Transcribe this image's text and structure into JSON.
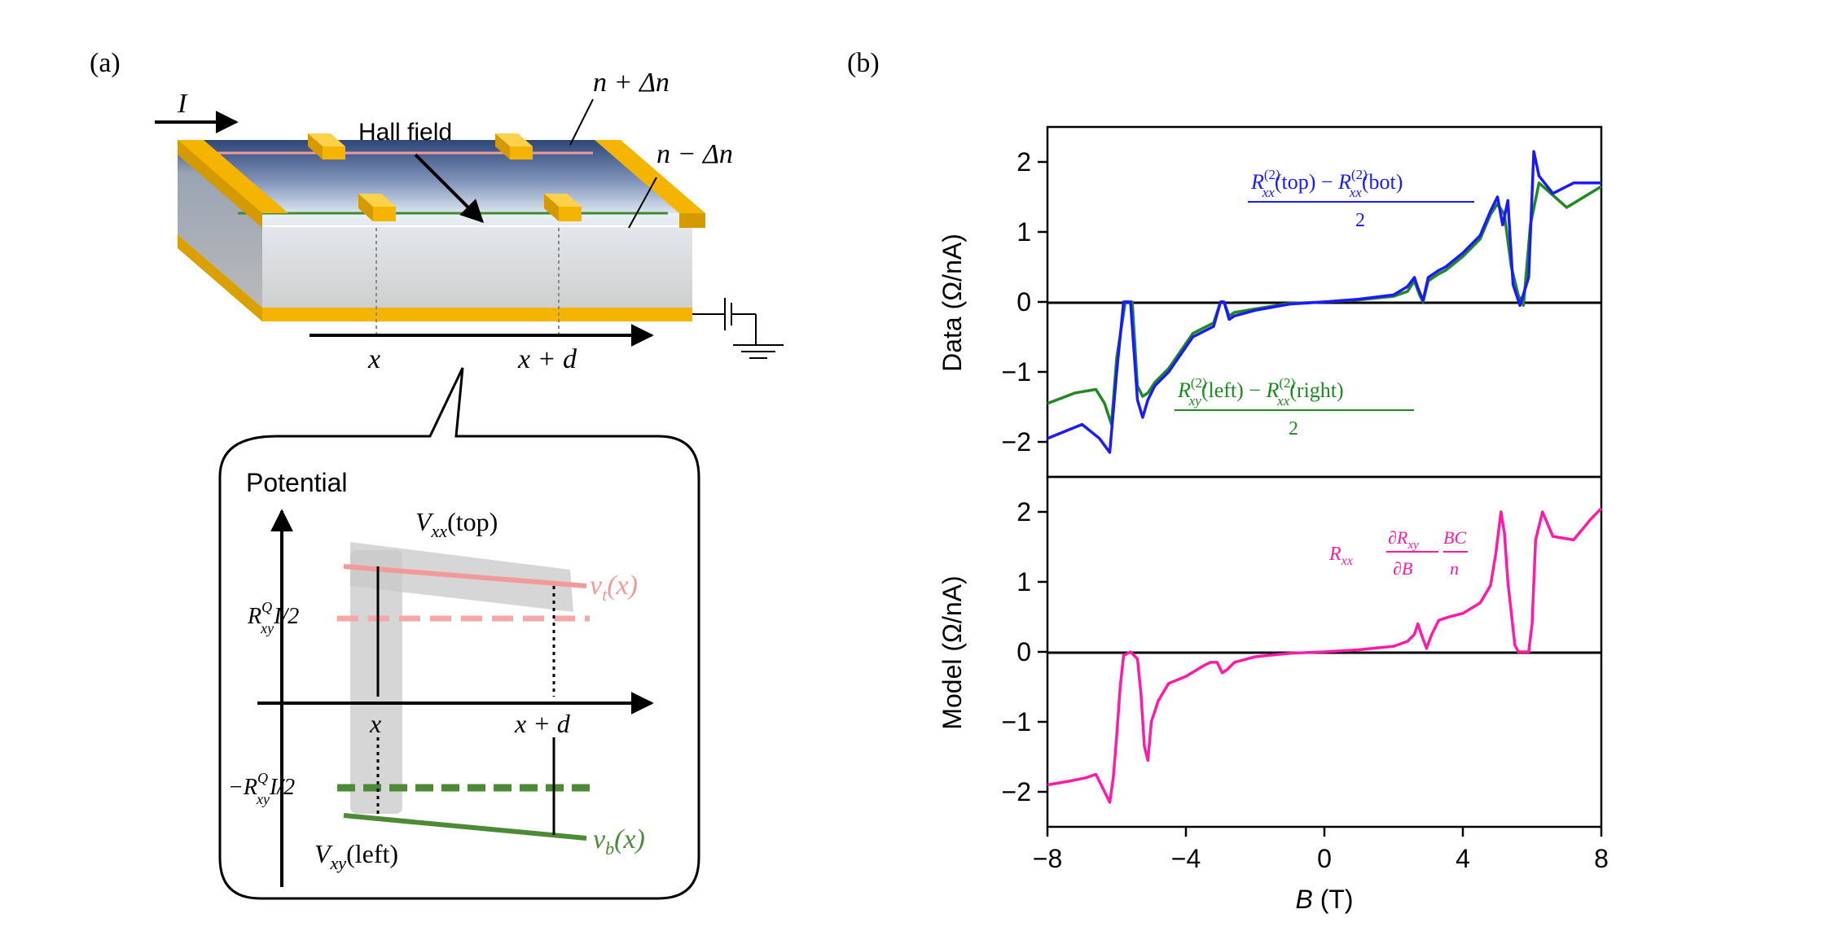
{
  "panel_a": {
    "label": "(a)",
    "current_label": "I",
    "hall_field_label": "Hall field",
    "top_density_label": "n + Δn",
    "bottom_density_label": "n − Δn",
    "position_x_label": "x",
    "position_xd_label": "x + d",
    "inset": {
      "y_axis_label": "Potential",
      "vxx_label": "V",
      "vxx_sub": "xx",
      "vxx_arg": "(top)",
      "vxy_label": "V",
      "vxy_sub": "xy",
      "vxy_arg": "(left)",
      "vt_label": "v",
      "vt_sub": "t",
      "vt_arg": "(x)",
      "vb_label": "v",
      "vb_sub": "b",
      "vb_arg": "(x)",
      "rq_pos_prefix": "R",
      "rq_pos_sup": "Q",
      "rq_pos_sub": "xy",
      "rq_pos_suffix": "I/2",
      "rq_neg_prefix": "−R",
      "rq_neg_sup": "Q",
      "rq_neg_sub": "xy",
      "rq_neg_suffix": "I/2",
      "x_label": "x",
      "xd_label": "x + d"
    },
    "colors": {
      "gold": "#f5b400",
      "vt": "#f29999",
      "vb": "#4d8a36",
      "shade": "#c8c8c8"
    }
  },
  "panel_b": {
    "label": "(b)",
    "top_annotation_blue": {
      "num_a": "R",
      "num_a_sup": "(2)",
      "num_a_sub": "xx",
      "num_a_arg": "(top) − ",
      "num_b": "R",
      "num_b_sup": "(2)",
      "num_b_sub": "xx",
      "num_b_arg": "(bot)",
      "den": "2"
    },
    "top_annotation_green": {
      "num_a": "R",
      "num_a_sup": "(2)",
      "num_a_sub": "xy",
      "num_a_arg": "(left) − ",
      "num_b": "R",
      "num_b_sup": "(2)",
      "num_b_sub": "xx",
      "num_b_arg": "(right)",
      "den": "2"
    },
    "bottom_annotation": {
      "r": "R",
      "r_sub": "xx",
      "frac1_num": "∂R",
      "frac1_num_sub": "xy",
      "frac1_den": "∂B",
      "frac2_num": "BC",
      "frac2_den": "n"
    },
    "colors": {
      "blue": "#1a1aff",
      "green": "#1f8a1f",
      "magenta": "#ff1aa8"
    }
  },
  "chart_data": [
    {
      "type": "line",
      "title": "",
      "ylabel": "Data (Ω/nA)",
      "xlabel": "",
      "xlim": [
        -8,
        8
      ],
      "ylim": [
        -2.5,
        2.5
      ],
      "yticks": [
        "−2",
        "−1",
        "0",
        "1",
        "2"
      ],
      "series": [
        {
          "name": "blue",
          "x": [
            -8,
            -7,
            -6.5,
            -6.2,
            -6.0,
            -5.8,
            -5.6,
            -5.4,
            -5.25,
            -5.1,
            -4.9,
            -4.5,
            -3.8,
            -3.2,
            -3.0,
            -2.9,
            -2.75,
            -2.6,
            -2.0,
            -1.0,
            0,
            1.0,
            2.0,
            2.4,
            2.6,
            2.7,
            2.85,
            3.0,
            3.3,
            3.5,
            4.0,
            4.5,
            4.8,
            5.0,
            5.15,
            5.3,
            5.45,
            5.65,
            5.9,
            6.05,
            6.2,
            6.6,
            7.2,
            8.0
          ],
          "y": [
            -1.95,
            -1.75,
            -1.95,
            -2.15,
            -1.0,
            0.0,
            0.0,
            -1.4,
            -1.65,
            -1.4,
            -1.2,
            -1.0,
            -0.5,
            -0.35,
            0.0,
            0.0,
            -0.25,
            -0.2,
            -0.12,
            -0.03,
            0.0,
            0.04,
            0.1,
            0.22,
            0.35,
            0.2,
            0.02,
            0.35,
            0.45,
            0.5,
            0.7,
            0.95,
            1.3,
            1.5,
            1.1,
            1.45,
            0.25,
            -0.05,
            0.35,
            2.15,
            1.8,
            1.55,
            1.7,
            1.7
          ]
        },
        {
          "name": "green",
          "x": [
            -8,
            -7.2,
            -6.6,
            -6.35,
            -6.15,
            -6.0,
            -5.75,
            -5.55,
            -5.4,
            -5.25,
            -5.1,
            -4.9,
            -4.5,
            -3.8,
            -3.2,
            -3.0,
            -2.9,
            -2.75,
            -2.6,
            -2.0,
            -1.0,
            0,
            1.0,
            2.0,
            2.4,
            2.6,
            2.75,
            2.85,
            3.0,
            3.3,
            3.5,
            4.0,
            4.5,
            4.8,
            5.0,
            5.2,
            5.4,
            5.6,
            5.75,
            5.95,
            6.2,
            7.0,
            8.0
          ],
          "y": [
            -1.45,
            -1.3,
            -1.25,
            -1.45,
            -1.75,
            -0.8,
            0.0,
            0.0,
            -1.2,
            -1.35,
            -1.3,
            -1.15,
            -0.95,
            -0.45,
            -0.3,
            0.0,
            0.0,
            -0.2,
            -0.15,
            -0.1,
            -0.02,
            0.0,
            0.03,
            0.08,
            0.15,
            0.3,
            0.1,
            0.0,
            0.3,
            0.4,
            0.45,
            0.65,
            0.9,
            1.25,
            1.4,
            1.25,
            0.5,
            0.1,
            -0.05,
            1.1,
            1.7,
            1.35,
            1.65
          ]
        }
      ]
    },
    {
      "type": "line",
      "title": "",
      "ylabel": "Model (Ω/nA)",
      "xlabel": "B (T)",
      "xlim": [
        -8,
        8
      ],
      "ylim": [
        -2.5,
        2.5
      ],
      "xticks": [
        "−8",
        "−4",
        "0",
        "4",
        "8"
      ],
      "yticks": [
        "−2",
        "−1",
        "0",
        "1",
        "2"
      ],
      "series": [
        {
          "name": "magenta",
          "x": [
            -8,
            -7.4,
            -6.9,
            -6.6,
            -6.4,
            -6.2,
            -6.1,
            -6.0,
            -5.9,
            -5.8,
            -5.6,
            -5.4,
            -5.3,
            -5.2,
            -5.1,
            -5.0,
            -4.8,
            -4.5,
            -4.0,
            -3.5,
            -3.3,
            -3.1,
            -2.95,
            -2.8,
            -2.6,
            -2.0,
            -1.0,
            0,
            1.0,
            2.0,
            2.4,
            2.6,
            2.7,
            2.8,
            2.95,
            3.1,
            3.3,
            3.6,
            4.0,
            4.5,
            4.8,
            4.95,
            5.1,
            5.2,
            5.3,
            5.5,
            5.6,
            5.7,
            5.8,
            5.9,
            6.0,
            6.1,
            6.3,
            6.6,
            7.2,
            7.7,
            8.0
          ],
          "y": [
            -1.9,
            -1.85,
            -1.8,
            -1.75,
            -1.95,
            -2.15,
            -1.8,
            -1.2,
            -0.5,
            -0.05,
            0.0,
            -0.1,
            -0.6,
            -1.35,
            -1.55,
            -1.0,
            -0.7,
            -0.45,
            -0.35,
            -0.2,
            -0.15,
            -0.15,
            -0.3,
            -0.25,
            -0.15,
            -0.07,
            -0.02,
            0.0,
            0.03,
            0.08,
            0.15,
            0.25,
            0.4,
            0.25,
            0.05,
            0.25,
            0.45,
            0.5,
            0.55,
            0.7,
            0.95,
            1.4,
            2.0,
            1.7,
            1.0,
            0.1,
            0.0,
            0.0,
            0.0,
            0.0,
            0.4,
            1.6,
            2.0,
            1.65,
            1.6,
            1.9,
            2.05
          ]
        }
      ]
    }
  ]
}
